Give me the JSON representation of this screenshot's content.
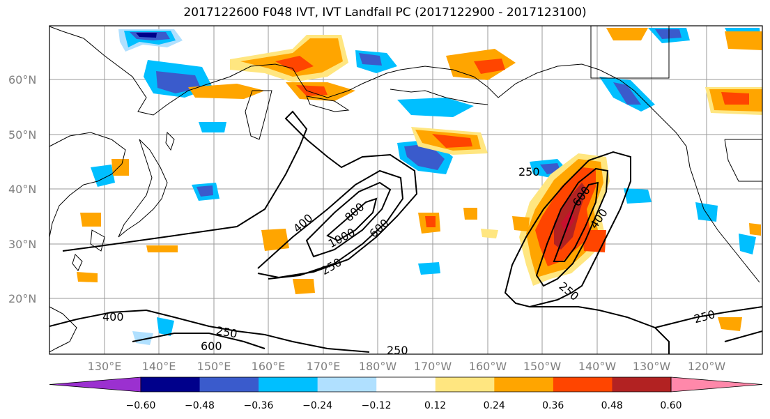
{
  "title": "2017122600 F048 IVT, IVT Landfall PC (2017122900 - 2017123100)",
  "lat_labels": [
    "60°N",
    "50°N",
    "40°N",
    "30°N",
    "20°N"
  ],
  "lon_labels": [
    "130°E",
    "140°E",
    "150°E",
    "160°E",
    "170°E",
    "180°W",
    "170°W",
    "160°W",
    "150°W",
    "140°W",
    "130°W",
    "120°W"
  ],
  "colorbar": {
    "ticks": [
      "−0.60",
      "−0.48",
      "−0.36",
      "−0.24",
      "−0.12",
      "0.12",
      "0.24",
      "0.36",
      "0.48",
      "0.60"
    ],
    "colors": [
      "#9b30d0",
      "#00008b",
      "#3a5bcc",
      "#00bfff",
      "#b0e0ff",
      "#ffffff",
      "#ffe680",
      "#ffa500",
      "#ff4500",
      "#b22222",
      "#ff88aa"
    ]
  },
  "contour_labels": [
    "400",
    "800",
    "1000",
    "600",
    "250",
    "250",
    "600",
    "400",
    "250",
    "400",
    "250",
    "600",
    "250",
    "250"
  ]
}
